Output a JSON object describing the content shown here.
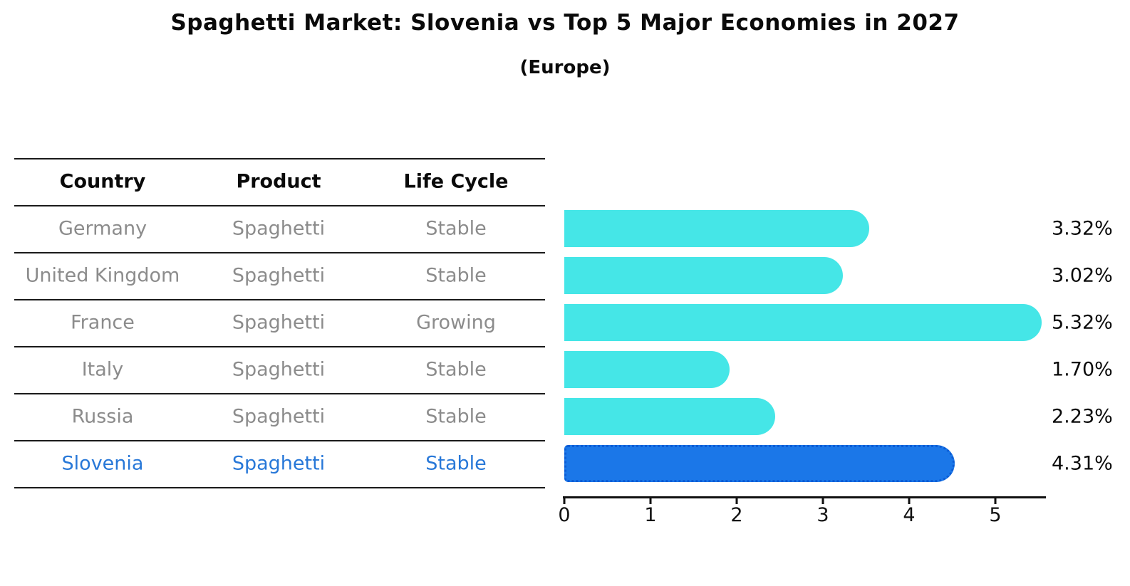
{
  "title": "Spaghetti Market: Slovenia vs Top 5 Major Economies in 2027",
  "subtitle": "(Europe)",
  "table": {
    "columns": [
      "Country",
      "Product",
      "Life Cycle"
    ],
    "rows": [
      {
        "country": "Germany",
        "product": "Spaghetti",
        "life_cycle": "Stable",
        "highlighted": false
      },
      {
        "country": "United Kingdom",
        "product": "Spaghetti",
        "life_cycle": "Stable",
        "highlighted": false
      },
      {
        "country": "France",
        "product": "Spaghetti",
        "life_cycle": "Growing",
        "highlighted": false
      },
      {
        "country": "Italy",
        "product": "Spaghetti",
        "life_cycle": "Stable",
        "highlighted": false
      },
      {
        "country": "Russia",
        "product": "Spaghetti",
        "life_cycle": "Stable",
        "highlighted": false
      },
      {
        "country": "Slovenia",
        "product": "Spaghetti",
        "life_cycle": "Stable",
        "highlighted": true
      }
    ]
  },
  "chart_data": {
    "type": "bar",
    "orientation": "horizontal",
    "title": "Spaghetti Market: Slovenia vs Top 5 Major Economies in 2027",
    "subtitle": "(Europe)",
    "categories": [
      "Germany",
      "United Kingdom",
      "France",
      "Italy",
      "Russia",
      "Slovenia"
    ],
    "values": [
      3.32,
      3.02,
      5.32,
      1.7,
      2.23,
      4.31
    ],
    "value_labels": [
      "3.32%",
      "3.02%",
      "5.32%",
      "1.70%",
      "2.23%",
      "4.31%"
    ],
    "highlight_category": "Slovenia",
    "xlabel": "",
    "ylabel": "",
    "xticks": [
      0,
      1,
      2,
      3,
      4,
      5
    ],
    "xlim": [
      0,
      5.59
    ],
    "grid": false,
    "legend_position": "none"
  },
  "colors": {
    "bar_default": "#45e6e7",
    "bar_highlight": "#1b77e8",
    "bar_highlight_border": "#0b5cd5",
    "highlight_text": "#2878d8",
    "table_text": "#8c8c8c",
    "heading_text": "#0a0a0a"
  }
}
